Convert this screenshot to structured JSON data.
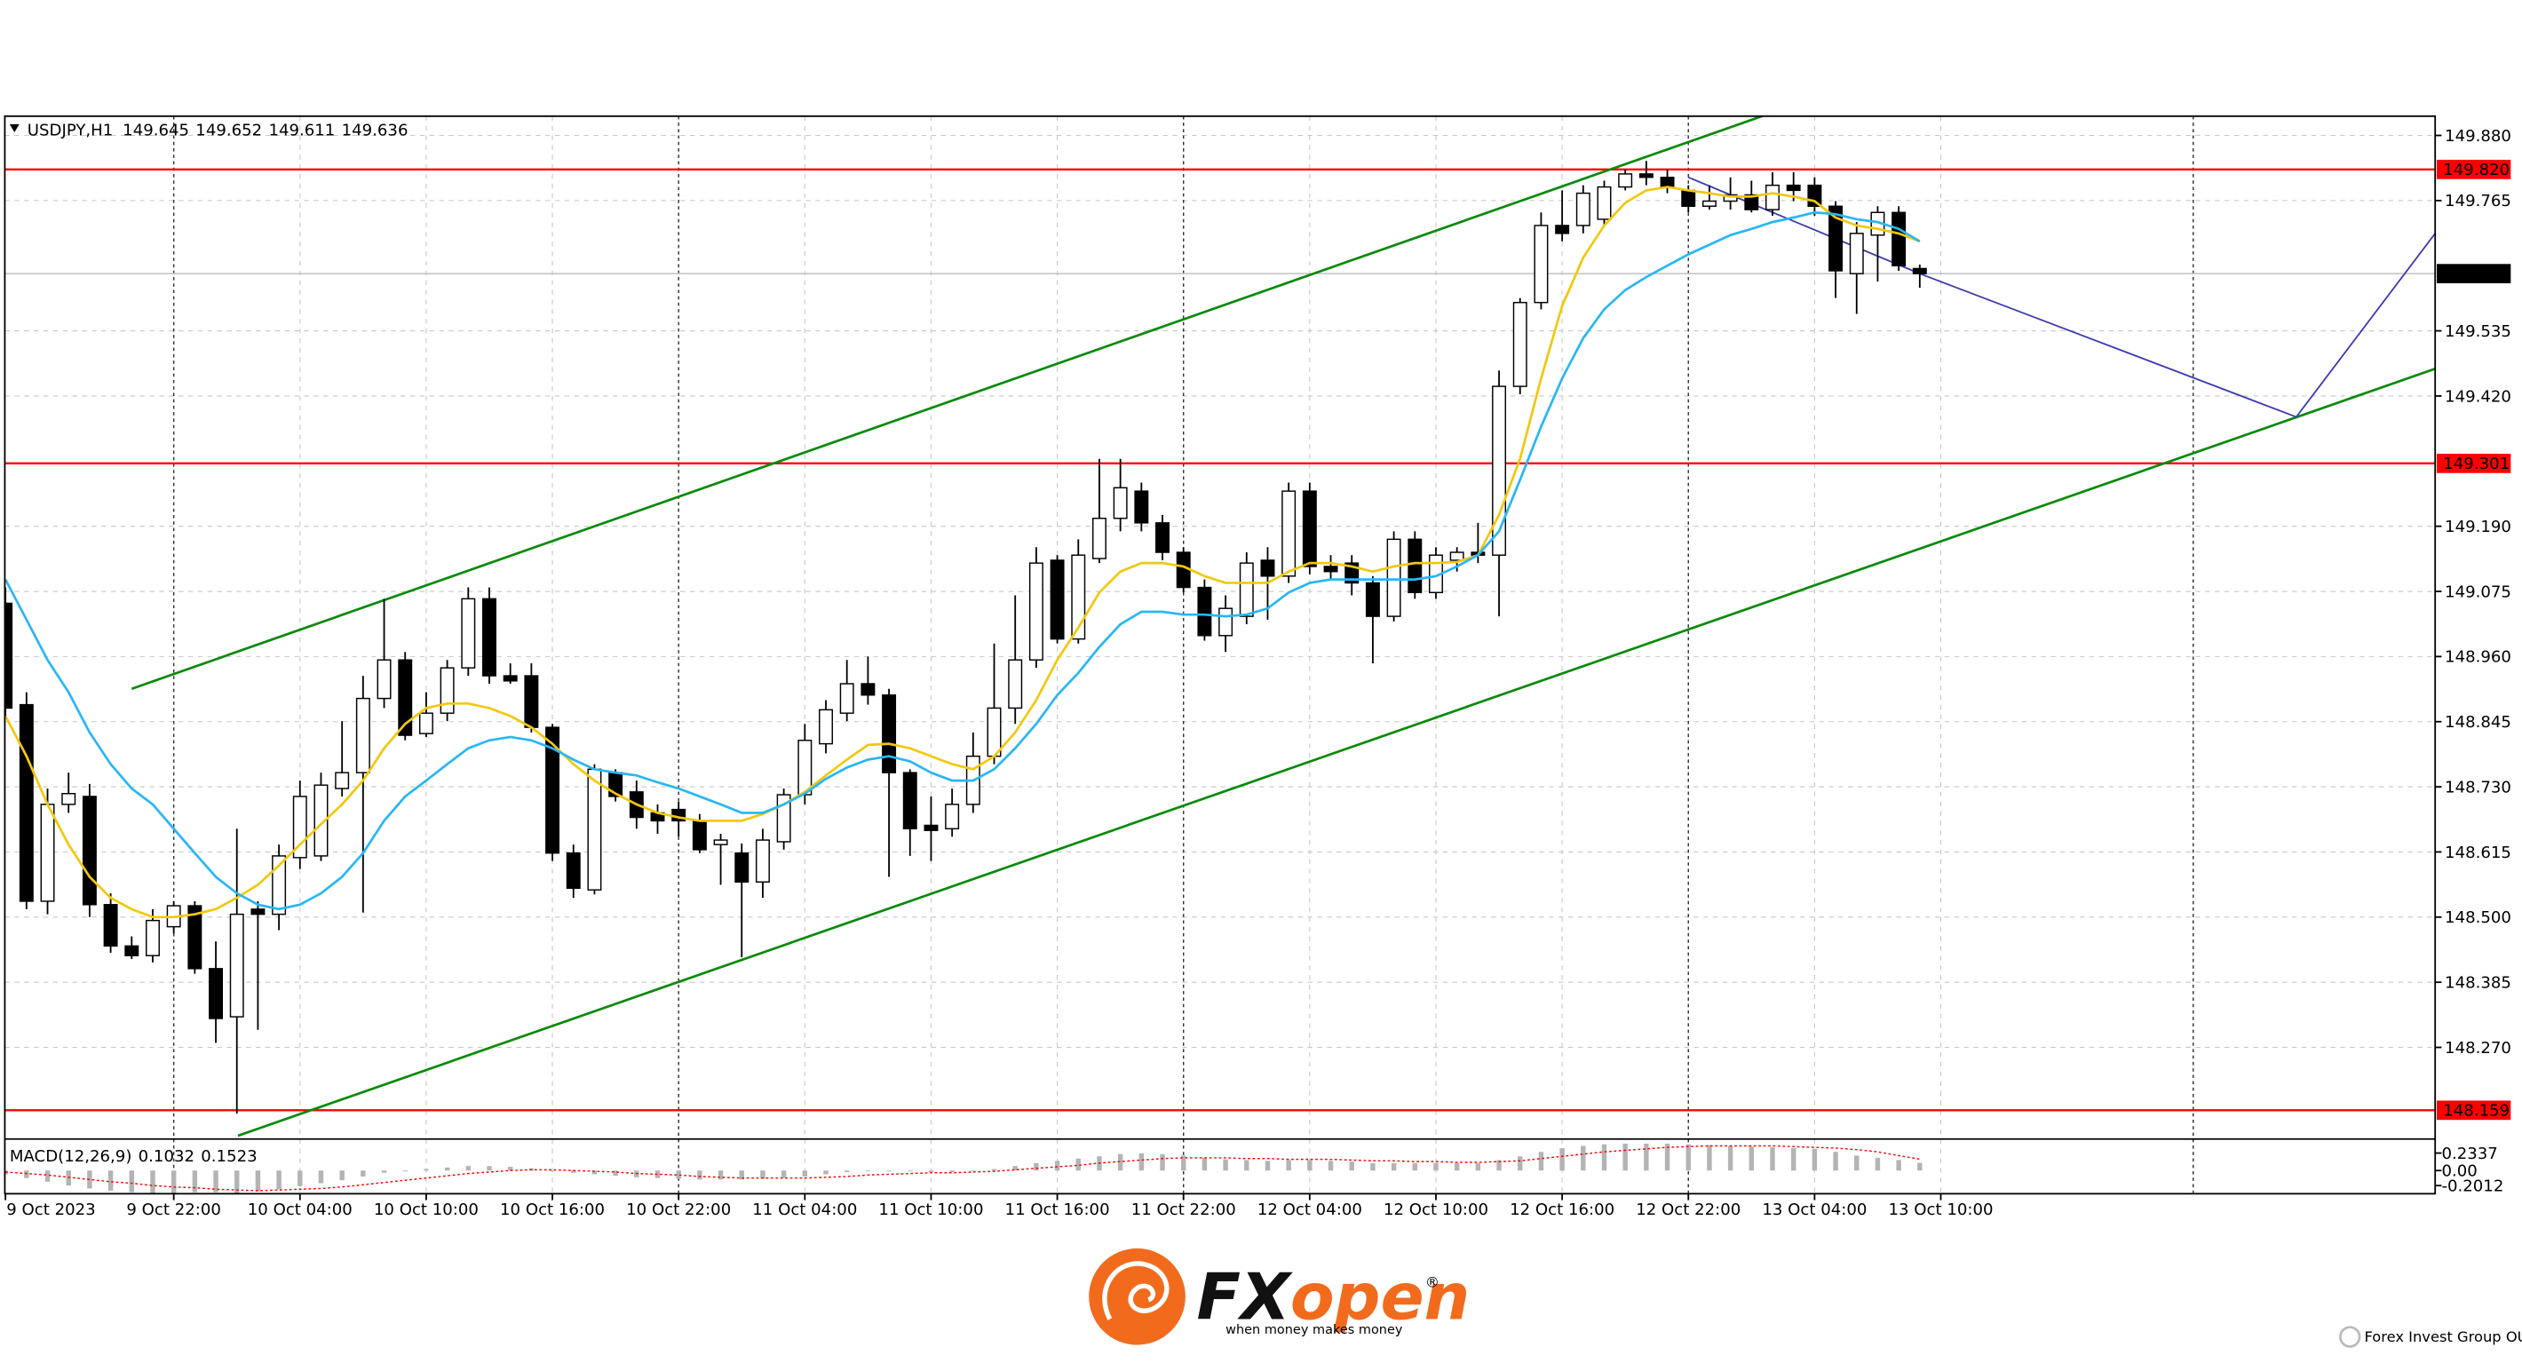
{
  "chart_data": {
    "type": "candlestick",
    "title": "USDJPY,H1",
    "up_color": "#ffffff",
    "down_color": "#000000",
    "wick_color": "#000000",
    "xlim": [
      0,
      115.5
    ],
    "ylim": [
      148.111,
      149.914
    ],
    "yticks": [
      {
        "value": 149.88,
        "label": "149.880"
      },
      149.765,
      149.535,
      {
        "value": 149.42,
        "label": "149.420"
      },
      {
        "value": 149.19,
        "label": "149.190"
      },
      149.075,
      {
        "value": 148.96,
        "label": "148.960"
      },
      148.845,
      {
        "value": 148.73,
        "label": "148.730"
      },
      148.615,
      {
        "value": 148.5,
        "label": "148.500"
      },
      148.385,
      {
        "value": 148.27,
        "label": "148.270"
      }
    ],
    "xticks": [
      {
        "value": 0,
        "label": "9 Oct 2023"
      },
      {
        "value": 8,
        "label": "9 Oct 22:00"
      },
      {
        "value": 14,
        "label": "10 Oct 04:00"
      },
      {
        "value": 20,
        "label": "10 Oct 10:00"
      },
      {
        "value": 26,
        "label": "10 Oct 16:00"
      },
      {
        "value": 32,
        "label": "10 Oct 22:00"
      },
      {
        "value": 38,
        "label": "11 Oct 04:00"
      },
      {
        "value": 44,
        "label": "11 Oct 10:00"
      },
      {
        "value": 50,
        "label": "11 Oct 16:00"
      },
      {
        "value": 56,
        "label": "11 Oct 22:00"
      },
      {
        "value": 62,
        "label": "12 Oct 04:00"
      },
      {
        "value": 68,
        "label": "12 Oct 10:00"
      },
      {
        "value": 74,
        "label": "12 Oct 16:00"
      },
      {
        "value": 80,
        "label": "12 Oct 22:00"
      },
      {
        "value": 86,
        "label": "13 Oct 04:00"
      },
      {
        "value": 92,
        "label": "13 Oct 10:00"
      }
    ],
    "grid": true,
    "open": [
      149.054,
      148.875,
      148.528,
      148.699,
      148.713,
      148.522,
      148.449,
      148.432,
      148.483,
      148.52,
      148.409,
      148.324,
      148.514,
      148.505,
      148.605,
      148.608,
      148.727,
      148.755,
      148.886,
      148.954,
      148.824,
      148.86,
      148.94,
      149.062,
      148.926,
      148.926,
      148.835,
      148.613,
      148.548,
      148.755,
      148.721,
      148.684,
      148.69,
      148.67,
      148.628,
      148.613,
      148.562,
      148.633,
      148.716,
      148.806,
      148.86,
      148.912,
      148.892,
      148.755,
      148.662,
      148.656,
      148.699,
      148.784,
      148.869,
      148.954,
      149.13,
      148.991,
      149.133,
      149.204,
      149.252,
      149.196,
      149.144,
      149.082,
      148.997,
      149.031,
      149.13,
      149.102,
      149.252,
      149.119,
      149.125,
      149.09,
      149.031,
      149.167,
      149.073,
      149.13,
      149.144,
      149.139,
      149.437,
      149.585,
      149.721,
      149.721,
      149.732,
      149.789,
      149.812,
      149.806,
      149.783,
      149.755,
      149.764,
      149.775,
      149.749,
      149.792,
      149.792,
      149.755,
      149.636,
      149.704,
      149.744,
      149.645
    ],
    "high": [
      149.082,
      148.897,
      148.727,
      148.755,
      148.735,
      148.542,
      148.466,
      148.514,
      148.528,
      148.528,
      148.457,
      148.656,
      148.528,
      148.628,
      148.741,
      148.755,
      148.846,
      148.926,
      149.062,
      148.968,
      148.897,
      148.954,
      149.082,
      149.082,
      148.948,
      148.948,
      148.841,
      148.628,
      148.77,
      148.761,
      148.741,
      148.699,
      148.704,
      148.682,
      148.647,
      148.63,
      148.656,
      148.727,
      148.841,
      148.883,
      148.954,
      148.96,
      148.903,
      148.761,
      148.713,
      148.727,
      148.826,
      148.983,
      149.068,
      149.153,
      149.139,
      149.167,
      149.309,
      149.309,
      149.267,
      149.21,
      149.153,
      149.096,
      149.068,
      149.144,
      149.153,
      149.267,
      149.267,
      149.139,
      149.139,
      149.102,
      149.181,
      149.181,
      149.153,
      149.153,
      149.196,
      149.465,
      149.593,
      149.744,
      149.783,
      149.792,
      149.8,
      149.82,
      149.835,
      149.82,
      149.792,
      149.792,
      149.806,
      149.8,
      149.815,
      149.815,
      149.806,
      149.764,
      149.727,
      149.755,
      149.755,
      149.652
    ],
    "low": [
      148.855,
      148.514,
      148.505,
      148.684,
      148.5,
      148.437,
      148.426,
      148.42,
      148.471,
      148.4,
      148.278,
      148.153,
      148.301,
      148.477,
      148.585,
      148.599,
      148.713,
      148.508,
      148.869,
      148.812,
      148.818,
      148.846,
      148.926,
      148.912,
      148.912,
      148.826,
      148.599,
      148.534,
      148.54,
      148.704,
      148.656,
      148.647,
      148.642,
      148.613,
      148.557,
      148.429,
      148.534,
      148.619,
      148.699,
      148.789,
      148.846,
      148.875,
      148.571,
      148.608,
      148.599,
      148.642,
      148.684,
      148.77,
      148.841,
      148.94,
      148.983,
      148.983,
      149.125,
      149.181,
      149.181,
      149.13,
      149.073,
      148.988,
      148.968,
      149.017,
      149.025,
      149.09,
      149.105,
      149.096,
      149.068,
      148.948,
      149.022,
      149.062,
      149.062,
      149.11,
      149.125,
      149.031,
      149.423,
      149.573,
      149.693,
      149.707,
      149.721,
      149.783,
      149.792,
      149.778,
      149.744,
      149.749,
      149.749,
      149.744,
      149.738,
      149.764,
      149.738,
      149.593,
      149.565,
      149.622,
      149.641,
      149.611
    ],
    "close": [
      148.869,
      148.528,
      148.699,
      148.718,
      148.522,
      148.449,
      148.432,
      148.494,
      148.52,
      148.409,
      148.321,
      148.505,
      148.505,
      148.608,
      148.713,
      148.733,
      148.755,
      148.886,
      148.954,
      148.821,
      148.86,
      148.94,
      149.062,
      148.926,
      148.917,
      148.835,
      148.613,
      148.551,
      148.761,
      148.713,
      148.676,
      148.67,
      148.67,
      148.619,
      148.636,
      148.562,
      148.636,
      148.716,
      148.812,
      148.866,
      148.912,
      148.892,
      148.755,
      148.656,
      148.653,
      148.699,
      148.784,
      148.869,
      148.954,
      149.125,
      148.991,
      149.139,
      149.204,
      149.258,
      149.196,
      149.144,
      149.082,
      148.997,
      149.045,
      149.125,
      149.102,
      149.252,
      149.119,
      149.11,
      149.09,
      149.031,
      149.167,
      149.073,
      149.139,
      149.144,
      149.139,
      149.437,
      149.585,
      149.721,
      149.707,
      149.778,
      149.789,
      149.812,
      149.806,
      149.789,
      149.755,
      149.764,
      149.775,
      149.749,
      149.792,
      149.783,
      149.755,
      149.641,
      149.707,
      149.744,
      149.65,
      149.636
    ],
    "series": [
      {
        "color": "#f2c80f",
        "values": [
          148.855,
          148.784,
          148.699,
          148.628,
          148.571,
          148.534,
          148.514,
          148.5,
          148.5,
          148.505,
          148.514,
          148.534,
          148.557,
          148.591,
          148.628,
          148.664,
          148.699,
          148.741,
          148.798,
          148.841,
          148.869,
          148.877,
          148.877,
          148.869,
          148.855,
          148.835,
          148.806,
          148.77,
          148.741,
          148.718,
          148.699,
          148.684,
          148.676,
          148.67,
          148.67,
          148.67,
          148.682,
          148.699,
          148.721,
          148.75,
          148.778,
          148.804,
          148.806,
          148.798,
          148.784,
          148.77,
          148.761,
          148.784,
          148.826,
          148.883,
          148.954,
          149.011,
          149.073,
          149.11,
          149.125,
          149.125,
          149.119,
          149.102,
          149.09,
          149.09,
          149.09,
          149.11,
          149.125,
          149.125,
          149.119,
          149.11,
          149.119,
          149.125,
          149.125,
          149.127,
          149.139,
          149.21,
          149.309,
          149.451,
          149.579,
          149.664,
          149.721,
          149.761,
          149.783,
          149.789,
          149.783,
          149.778,
          149.772,
          149.772,
          149.778,
          149.772,
          149.764,
          149.735,
          149.721,
          149.715,
          149.707,
          149.693
        ]
      },
      {
        "color": "#29b6f6",
        "values": [
          149.096,
          149.025,
          148.954,
          148.897,
          148.826,
          148.77,
          148.727,
          148.699,
          148.656,
          148.613,
          148.571,
          148.542,
          148.522,
          148.514,
          148.522,
          148.542,
          148.571,
          148.613,
          148.67,
          148.713,
          148.741,
          148.77,
          148.798,
          148.812,
          148.818,
          148.812,
          148.798,
          148.778,
          148.761,
          148.755,
          148.75,
          148.738,
          148.727,
          148.713,
          148.699,
          148.684,
          148.684,
          148.699,
          148.718,
          148.744,
          148.764,
          148.778,
          148.784,
          148.775,
          148.755,
          148.741,
          148.741,
          148.761,
          148.798,
          148.841,
          148.892,
          148.931,
          148.977,
          149.017,
          149.039,
          149.039,
          149.034,
          149.034,
          149.031,
          149.034,
          149.045,
          149.073,
          149.09,
          149.096,
          149.096,
          149.096,
          149.096,
          149.096,
          149.102,
          149.119,
          149.139,
          149.181,
          149.272,
          149.366,
          149.451,
          149.522,
          149.573,
          149.607,
          149.63,
          149.65,
          149.67,
          149.687,
          149.704,
          149.715,
          149.727,
          149.735,
          149.744,
          149.741,
          149.732,
          149.727,
          149.715,
          149.693
        ]
      }
    ],
    "levels": [
      {
        "value": 149.82,
        "label": "149.820",
        "color": "#ff0000"
      },
      {
        "value": 149.301,
        "color": "#ff0000"
      },
      {
        "value": 148.159,
        "color": "#ff0000"
      }
    ],
    "current_price_color": "#c0c0c0",
    "trendlines": [
      {
        "color": "#0a8a0a",
        "x": [
          6.0,
          83.5
        ],
        "y": [
          148.903,
          149.914
        ]
      },
      {
        "color": "#0a8a0a",
        "x": [
          11.05,
          115.5
        ],
        "y": [
          148.114,
          149.468
        ]
      },
      {
        "color": "#3b3bb0",
        "x": [
          80.0,
          91.0,
          108.9,
          115.5
        ],
        "y": [
          149.806,
          149.636,
          149.383,
          149.707
        ]
      }
    ],
    "macd": {
      "title": "MACD(12,26,9)",
      "color": "#b4b4b4",
      "signal_color": "#ff0000",
      "ylim": [
        -0.31,
        0.4
      ],
      "yticks": [
        0.2337,
        {
          "value": 0,
          "label": "0.00"
        },
        -0.2012
      ],
      "values": [
        -0.05,
        -0.1,
        -0.15,
        -0.2,
        -0.24,
        -0.27,
        -0.29,
        -0.3,
        -0.3,
        -0.29,
        -0.29,
        -0.3,
        -0.28,
        -0.25,
        -0.21,
        -0.17,
        -0.13,
        -0.08,
        -0.03,
        0.0,
        0.02,
        0.04,
        0.06,
        0.06,
        0.05,
        0.03,
        0.0,
        -0.03,
        -0.05,
        -0.07,
        -0.09,
        -0.1,
        -0.11,
        -0.12,
        -0.12,
        -0.12,
        -0.11,
        -0.1,
        -0.08,
        -0.05,
        -0.02,
        0.0,
        0.0,
        -0.01,
        -0.02,
        -0.02,
        -0.01,
        0.02,
        0.06,
        0.1,
        0.13,
        0.16,
        0.19,
        0.22,
        0.23,
        0.22,
        0.2,
        0.17,
        0.15,
        0.14,
        0.13,
        0.14,
        0.14,
        0.13,
        0.12,
        0.1,
        0.1,
        0.1,
        0.1,
        0.1,
        0.1,
        0.14,
        0.19,
        0.25,
        0.3,
        0.33,
        0.35,
        0.36,
        0.36,
        0.36,
        0.35,
        0.34,
        0.33,
        0.32,
        0.31,
        0.3,
        0.29,
        0.25,
        0.2,
        0.17,
        0.14,
        0.1032
      ],
      "signal": [
        -0.02,
        -0.04,
        -0.06,
        -0.09,
        -0.12,
        -0.15,
        -0.17,
        -0.2,
        -0.22,
        -0.23,
        -0.25,
        -0.26,
        -0.27,
        -0.26,
        -0.25,
        -0.24,
        -0.22,
        -0.19,
        -0.16,
        -0.13,
        -0.1,
        -0.07,
        -0.04,
        -0.02,
        0.0,
        0.01,
        0.01,
        0.0,
        -0.01,
        -0.02,
        -0.04,
        -0.05,
        -0.06,
        -0.08,
        -0.09,
        -0.1,
        -0.1,
        -0.1,
        -0.1,
        -0.09,
        -0.08,
        -0.06,
        -0.05,
        -0.04,
        -0.03,
        -0.03,
        -0.02,
        -0.01,
        0.01,
        0.03,
        0.05,
        0.07,
        0.1,
        0.12,
        0.14,
        0.16,
        0.17,
        0.17,
        0.17,
        0.16,
        0.16,
        0.15,
        0.15,
        0.15,
        0.14,
        0.13,
        0.13,
        0.12,
        0.12,
        0.11,
        0.11,
        0.12,
        0.13,
        0.16,
        0.19,
        0.22,
        0.25,
        0.27,
        0.29,
        0.31,
        0.32,
        0.33,
        0.33,
        0.33,
        0.33,
        0.32,
        0.31,
        0.3,
        0.28,
        0.25,
        0.2,
        0.1523
      ]
    }
  },
  "branding": {
    "brand_first": "FX",
    "brand_second": "open",
    "registered": "®",
    "tagline": "when money makes money",
    "company": "Forex Invest Group OU"
  }
}
